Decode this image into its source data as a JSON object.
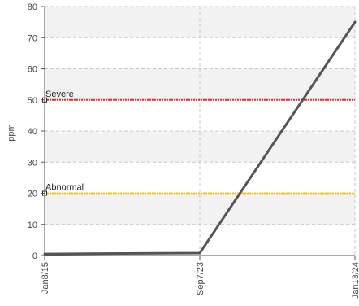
{
  "chart_data": {
    "type": "line",
    "title": "",
    "xlabel": "",
    "ylabel": "ppm",
    "ylim": [
      0,
      80
    ],
    "yticks": [
      0,
      10,
      20,
      30,
      40,
      50,
      60,
      70,
      80
    ],
    "x": [
      "Jan8/15",
      "Sep7/23",
      "Jan13/24"
    ],
    "grid": true,
    "legend": "none",
    "series": [
      {
        "values": [
          0.5,
          0.8,
          75
        ],
        "color": "#555555"
      }
    ],
    "thresholds": [
      {
        "label": "Severe",
        "value": 50,
        "color": "#e8262b"
      },
      {
        "label": "Abnormal",
        "value": 20,
        "color": "#f5c518"
      }
    ],
    "colors": {
      "band_alt": "#f2f2f2",
      "grid": "#c8c8c8",
      "axis": "#555555"
    }
  }
}
